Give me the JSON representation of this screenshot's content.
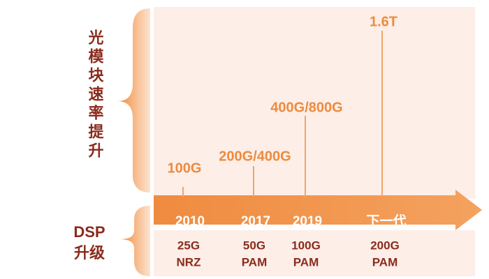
{
  "left_labels": {
    "speed": "光模块速率提升",
    "dsp": [
      "DSP",
      "升级"
    ]
  },
  "milestones": [
    {
      "speed": "100G",
      "year": "2010",
      "dsp": [
        "25G",
        "NRZ"
      ]
    },
    {
      "speed": "200G/400G",
      "year": "2017",
      "dsp": [
        "50G",
        "PAM"
      ]
    },
    {
      "speed": "400G/800G",
      "year": "2019",
      "dsp": [
        "100G",
        "PAM"
      ]
    },
    {
      "speed": "1.6T",
      "year": "下一代",
      "dsp": [
        "200G",
        "PAM"
      ]
    }
  ]
}
